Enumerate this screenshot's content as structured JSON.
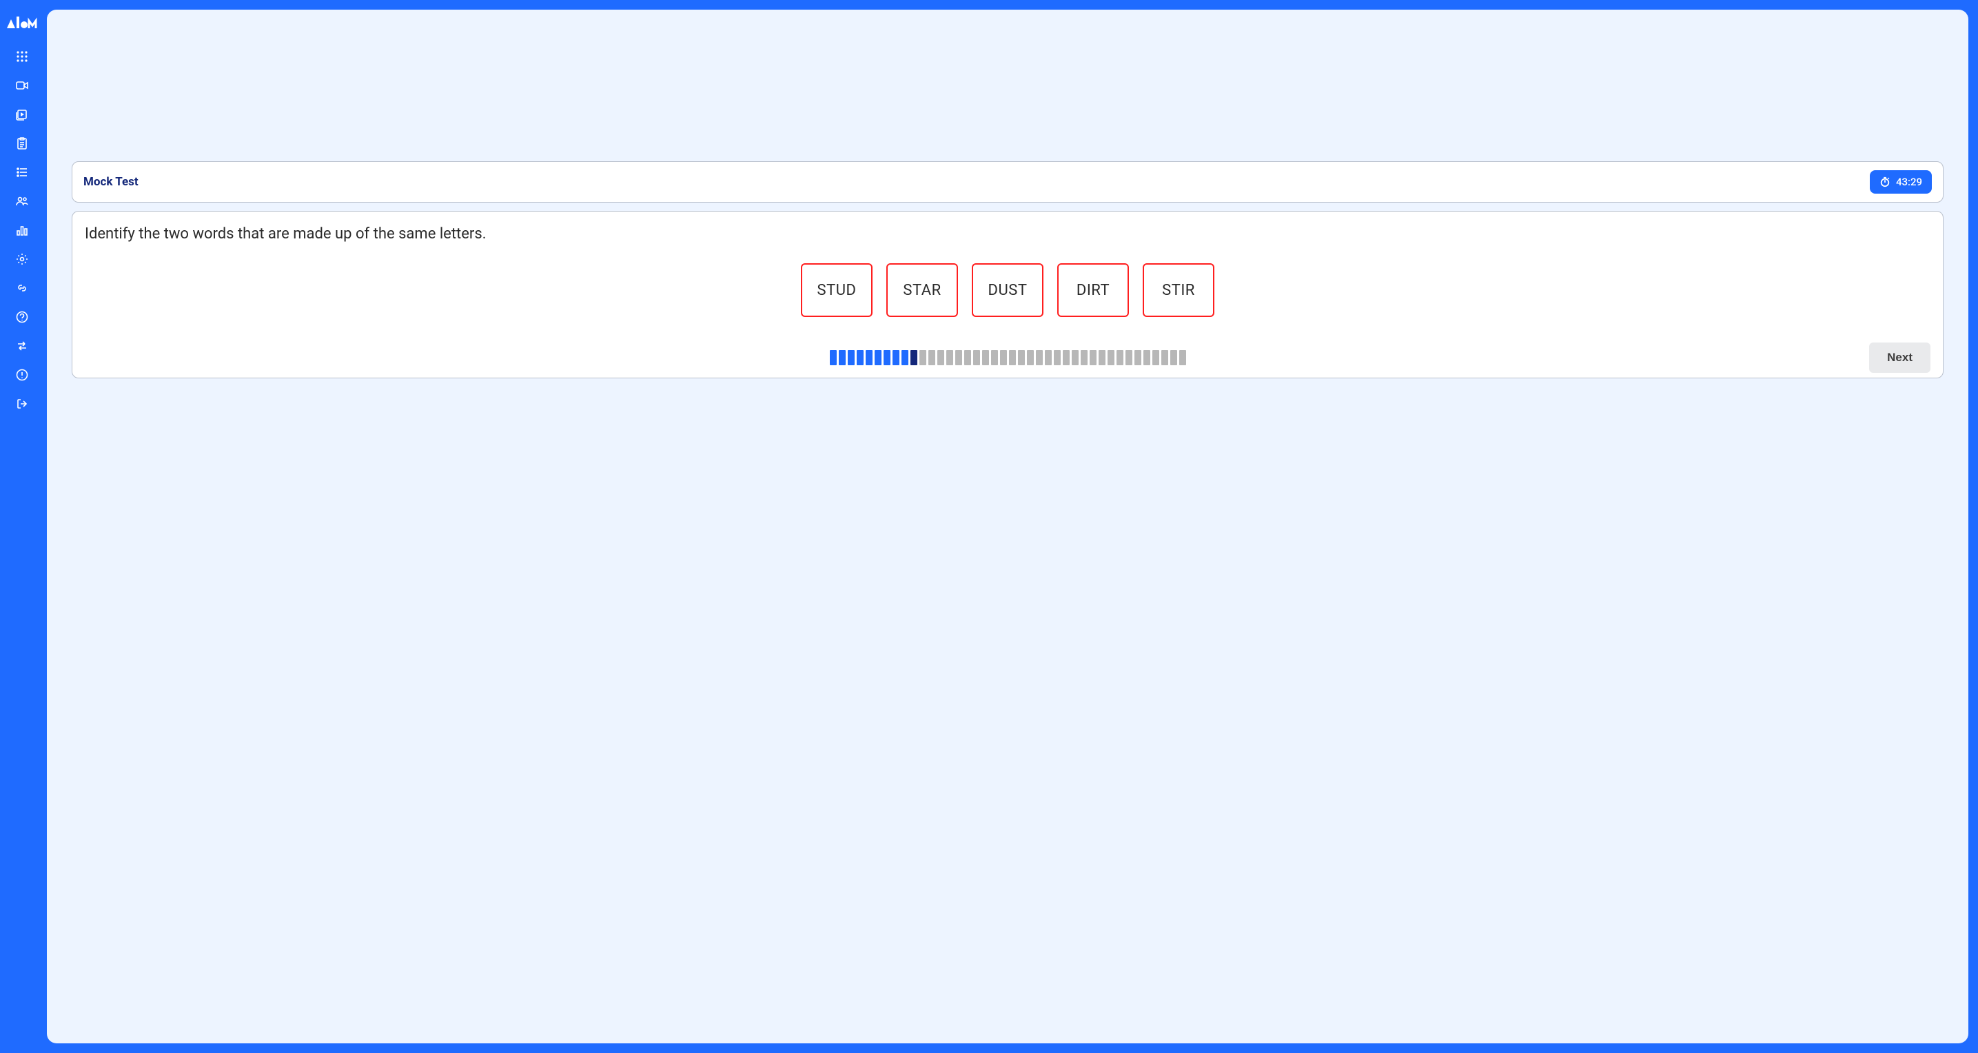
{
  "colors": {
    "brand": "#1f6bff",
    "page_bg": "#edf4ff",
    "card_border": "#b9c0cc",
    "option_border": "#ff1f1f",
    "progress_done": "#1f6bff",
    "progress_current": "#14287a",
    "progress_todo": "#b7b7b7",
    "next_bg": "#e9eaec"
  },
  "sidebar": {
    "logo_name": "atom-logo",
    "items": [
      {
        "name": "apps-grid-icon"
      },
      {
        "name": "video-icon"
      },
      {
        "name": "play-library-icon"
      },
      {
        "name": "clipboard-icon"
      },
      {
        "name": "list-icon"
      },
      {
        "name": "people-icon"
      },
      {
        "name": "bar-chart-icon"
      },
      {
        "name": "gear-icon"
      },
      {
        "name": "link-icon"
      },
      {
        "name": "help-icon"
      },
      {
        "name": "swap-icon"
      },
      {
        "name": "alert-icon"
      },
      {
        "name": "logout-icon"
      }
    ]
  },
  "header": {
    "title": "Mock Test",
    "timer": "43:29"
  },
  "question": {
    "prompt": "Identify the two words that are made up of the same letters.",
    "options": [
      "STUD",
      "STAR",
      "DUST",
      "DIRT",
      "STIR"
    ]
  },
  "progress": {
    "total": 40,
    "completed": 9,
    "current_index": 9
  },
  "footer": {
    "next_label": "Next"
  }
}
